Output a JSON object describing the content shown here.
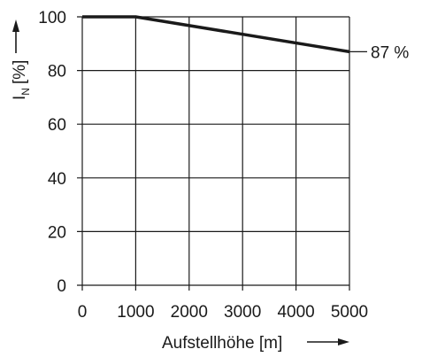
{
  "chart_data": {
    "type": "line",
    "x": [
      0,
      1000,
      5000
    ],
    "series": [
      {
        "values": [
          100,
          100,
          87
        ]
      }
    ],
    "xlabel": "Aufstellhöhe [m]",
    "ylabel_main": "I",
    "ylabel_sub": "N",
    "ylabel_unit": "[%]",
    "xlim": [
      0,
      5000
    ],
    "ylim": [
      0,
      100
    ],
    "xticks": [
      "0",
      "1000",
      "2000",
      "3000",
      "4000",
      "5000"
    ],
    "yticks": [
      "0",
      "20",
      "40",
      "60",
      "80",
      "100"
    ],
    "grid": true,
    "annotation": "87 %",
    "colors": {
      "line": "#1a1a1a",
      "grid": "#1a1a1a",
      "text": "#1a1a1a"
    }
  }
}
